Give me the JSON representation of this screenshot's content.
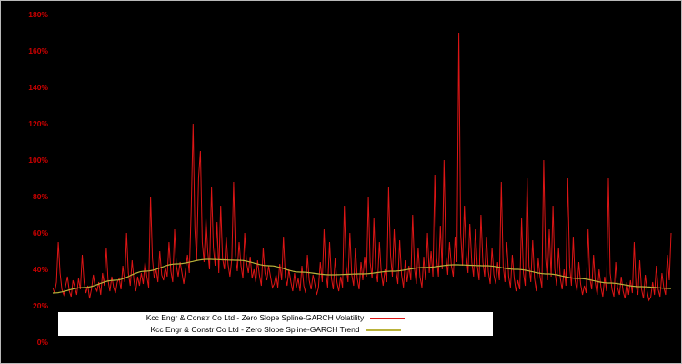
{
  "chart_data": {
    "type": "line",
    "title": "",
    "xlabel": "",
    "ylabel": "",
    "background": "#000000",
    "grid": false,
    "ylim": [
      0,
      1.8
    ],
    "ytick_labels": [
      "0%",
      "20%",
      "40%",
      "60%",
      "80%",
      "100%",
      "120%",
      "140%",
      "160%",
      "180%"
    ],
    "ytick_values": [
      0,
      0.2,
      0.4,
      0.6,
      0.8,
      1.0,
      1.2,
      1.4,
      1.6,
      1.8
    ],
    "ytick_color": "#cc0000",
    "legend_position": "bottom-center",
    "series": [
      {
        "name": "Kcc Engr & Constr Co Ltd - Zero Slope Spline-GARCH Volatility",
        "color": "#dd1515",
        "values": [
          0.3,
          0.27,
          0.33,
          0.55,
          0.38,
          0.29,
          0.26,
          0.31,
          0.36,
          0.28,
          0.25,
          0.34,
          0.3,
          0.26,
          0.35,
          0.29,
          0.48,
          0.33,
          0.27,
          0.31,
          0.24,
          0.29,
          0.37,
          0.3,
          0.28,
          0.33,
          0.26,
          0.38,
          0.31,
          0.52,
          0.34,
          0.28,
          0.36,
          0.3,
          0.27,
          0.33,
          0.35,
          0.29,
          0.42,
          0.33,
          0.6,
          0.38,
          0.31,
          0.45,
          0.34,
          0.28,
          0.36,
          0.31,
          0.38,
          0.32,
          0.44,
          0.36,
          0.3,
          0.8,
          0.46,
          0.35,
          0.4,
          0.33,
          0.5,
          0.37,
          0.34,
          0.41,
          0.36,
          0.55,
          0.39,
          0.33,
          0.62,
          0.42,
          0.36,
          0.44,
          0.38,
          0.32,
          0.4,
          0.48,
          0.38,
          0.72,
          1.2,
          0.62,
          0.45,
          0.9,
          1.05,
          0.55,
          0.44,
          0.68,
          0.5,
          0.4,
          0.85,
          0.52,
          0.42,
          0.66,
          0.38,
          0.75,
          0.46,
          0.4,
          0.58,
          0.43,
          0.36,
          0.46,
          0.88,
          0.48,
          0.39,
          0.55,
          0.42,
          0.35,
          0.6,
          0.44,
          0.38,
          0.47,
          0.35,
          0.4,
          0.33,
          0.45,
          0.37,
          0.31,
          0.52,
          0.38,
          0.34,
          0.42,
          0.36,
          0.3,
          0.32,
          0.37,
          0.3,
          0.43,
          0.34,
          0.58,
          0.36,
          0.31,
          0.4,
          0.33,
          0.28,
          0.38,
          0.3,
          0.35,
          0.28,
          0.42,
          0.31,
          0.27,
          0.48,
          0.34,
          0.29,
          0.37,
          0.32,
          0.26,
          0.3,
          0.44,
          0.33,
          0.62,
          0.38,
          0.3,
          0.55,
          0.35,
          0.29,
          0.46,
          0.33,
          0.28,
          0.36,
          0.3,
          0.75,
          0.42,
          0.33,
          0.6,
          0.37,
          0.31,
          0.52,
          0.35,
          0.29,
          0.44,
          0.34,
          0.47,
          0.36,
          0.8,
          0.44,
          0.35,
          0.68,
          0.4,
          0.33,
          0.55,
          0.38,
          0.31,
          0.4,
          0.33,
          0.85,
          0.48,
          0.36,
          0.62,
          0.39,
          0.32,
          0.56,
          0.37,
          0.3,
          0.45,
          0.33,
          0.42,
          0.34,
          0.7,
          0.4,
          0.32,
          0.52,
          0.36,
          0.3,
          0.47,
          0.34,
          0.6,
          0.38,
          0.5,
          0.36,
          0.92,
          0.46,
          0.36,
          0.64,
          0.4,
          1.0,
          0.48,
          0.37,
          0.55,
          0.42,
          0.36,
          0.58,
          0.44,
          1.7,
          0.6,
          0.42,
          0.75,
          0.48,
          0.38,
          0.65,
          0.44,
          0.36,
          0.62,
          0.42,
          0.34,
          0.7,
          0.44,
          0.36,
          0.58,
          0.39,
          0.32,
          0.52,
          0.37,
          0.32,
          0.44,
          0.34,
          0.88,
          0.42,
          0.33,
          0.55,
          0.36,
          0.3,
          0.48,
          0.35,
          0.28,
          0.34,
          0.29,
          0.68,
          0.38,
          0.31,
          0.9,
          0.42,
          0.33,
          0.56,
          0.35,
          0.28,
          0.46,
          0.36,
          0.3,
          1.0,
          0.46,
          0.34,
          0.62,
          0.36,
          0.75,
          0.4,
          0.31,
          0.52,
          0.35,
          0.29,
          0.4,
          0.31,
          0.9,
          0.42,
          0.31,
          0.58,
          0.34,
          0.28,
          0.44,
          0.32,
          0.26,
          0.31,
          0.27,
          0.62,
          0.35,
          0.29,
          0.48,
          0.32,
          0.26,
          0.4,
          0.3,
          0.25,
          0.36,
          0.28,
          0.9,
          0.38,
          0.29,
          0.25,
          0.44,
          0.3,
          0.26,
          0.36,
          0.28,
          0.24,
          0.33,
          0.26,
          0.34,
          0.27,
          0.55,
          0.31,
          0.26,
          0.45,
          0.29,
          0.24,
          0.37,
          0.28,
          0.23,
          0.25,
          0.33,
          0.26,
          0.42,
          0.29,
          0.25,
          0.38,
          0.3,
          0.26,
          0.48,
          0.34,
          0.6
        ]
      },
      {
        "name": "Kcc Engr & Constr Co Ltd - Zero Slope Spline-GARCH Trend",
        "color": "#b9b23a",
        "points": [
          [
            0.0,
            0.27
          ],
          [
            0.05,
            0.3
          ],
          [
            0.1,
            0.34
          ],
          [
            0.15,
            0.39
          ],
          [
            0.2,
            0.43
          ],
          [
            0.25,
            0.455
          ],
          [
            0.3,
            0.45
          ],
          [
            0.35,
            0.42
          ],
          [
            0.4,
            0.385
          ],
          [
            0.45,
            0.37
          ],
          [
            0.5,
            0.375
          ],
          [
            0.55,
            0.39
          ],
          [
            0.6,
            0.41
          ],
          [
            0.65,
            0.425
          ],
          [
            0.7,
            0.42
          ],
          [
            0.75,
            0.4
          ],
          [
            0.8,
            0.375
          ],
          [
            0.85,
            0.35
          ],
          [
            0.9,
            0.325
          ],
          [
            0.95,
            0.305
          ],
          [
            1.0,
            0.295
          ]
        ]
      }
    ]
  }
}
